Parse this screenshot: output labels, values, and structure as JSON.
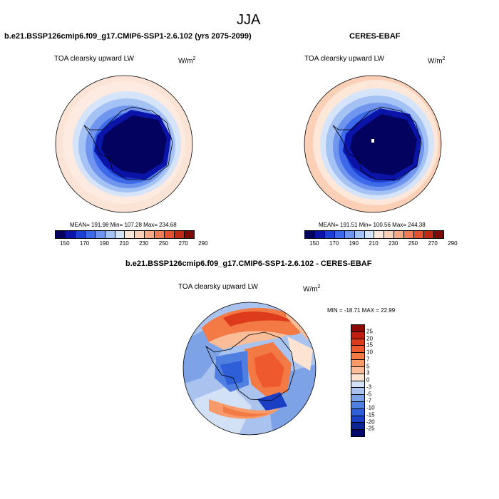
{
  "season_title": "JJA",
  "panels": {
    "model": {
      "title": "b.e21.BSSP126cmip6.f09_g17.CMIP6-SSP1-2.6.102 (yrs 2075-2099)",
      "variable": "TOA clearsky upward LW",
      "units_base": "W/m",
      "units_exp": "2",
      "stats": "MEAN= 191.98  Min= 107.28  Max= 234.68"
    },
    "obs": {
      "title": "CERES-EBAF",
      "variable": "TOA clearsky upward LW",
      "units_base": "W/m",
      "units_exp": "2",
      "stats": "MEAN= 191.51  Min= 100.56  Max= 244.38"
    },
    "diff": {
      "title": "b.e21.BSSP126cmip6.f09_g17.CMIP6-SSP1-2.6.102 - CERES-EBAF",
      "variable": "TOA clearsky upward LW",
      "units_base": "W/m",
      "units_exp": "2",
      "stats": "MIN = -18.71 MAX =  22.99"
    }
  },
  "colorbar_abs": {
    "labels": [
      "150",
      "170",
      "190",
      "210",
      "230",
      "250",
      "270",
      "290"
    ],
    "colors": [
      "#03035f",
      "#0a14a8",
      "#1e3fd6",
      "#3d6ae8",
      "#6f95ef",
      "#a5c2f5",
      "#d6e4fa",
      "#fde7d9",
      "#fbd0b7",
      "#f6a985",
      "#f07c57",
      "#e4512f",
      "#c02a15",
      "#7e0a05"
    ]
  },
  "colorbar_diff": {
    "labels": [
      "25",
      "20",
      "15",
      "10",
      "7",
      "5",
      "3",
      "0",
      "-3",
      "-5",
      "-7",
      "-10",
      "-15",
      "-20",
      "-25"
    ],
    "colors": [
      "#8b0a05",
      "#c21d0e",
      "#dd3b1c",
      "#ee5a2d",
      "#f47a45",
      "#f89a6a",
      "#fbbd98",
      "#fde3d1",
      "#d3e1f6",
      "#a9c3ee",
      "#7da2e6",
      "#4f7fe0",
      "#2e5fd8",
      "#1b3fc4",
      "#0c2596",
      "#04086a"
    ]
  }
}
